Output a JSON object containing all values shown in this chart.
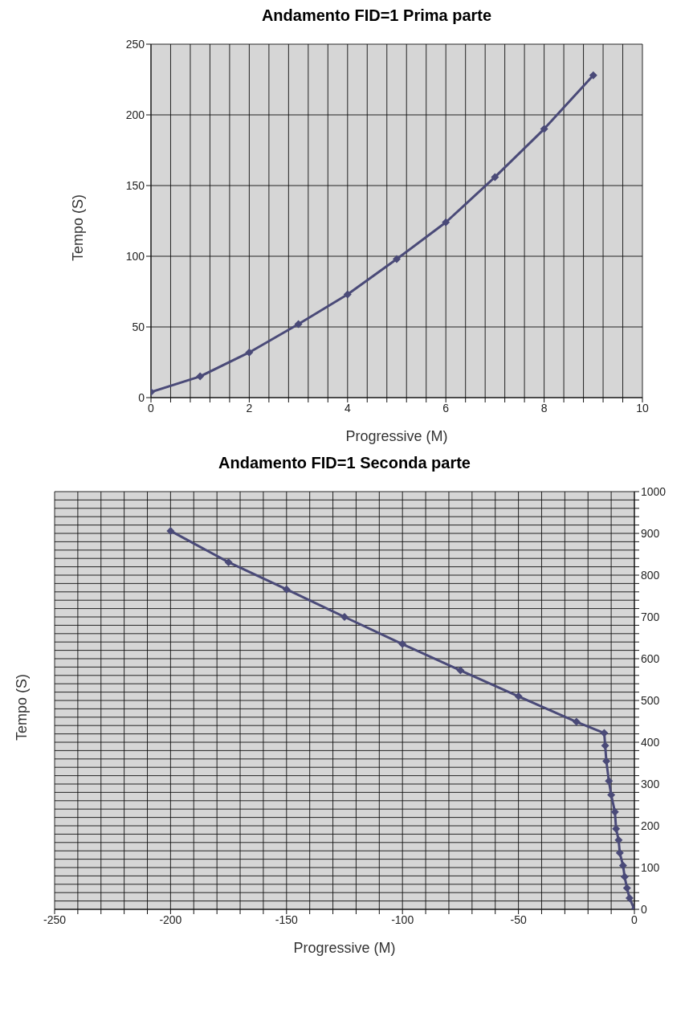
{
  "chart_data": [
    {
      "type": "line",
      "title": "Andamento FID=1 Prima parte",
      "xlabel": "Progressive (M)",
      "ylabel": "Tempo (S)",
      "marker": "diamond",
      "grid": true,
      "legend": false,
      "x": [
        0,
        1,
        2,
        3,
        4,
        5,
        6,
        7,
        8,
        9
      ],
      "series": [
        {
          "color": "#4a4a78",
          "values": [
            4,
            15,
            32,
            52,
            73,
            98,
            124,
            156,
            190,
            228
          ]
        }
      ],
      "xlim": [
        0,
        10
      ],
      "ylim": [
        0,
        250
      ],
      "yticks": [
        0,
        50,
        100,
        150,
        200,
        250
      ],
      "xticks": [
        0,
        {
          "value": 0.4,
          "label": null
        },
        {
          "value": 0.8,
          "label": null
        },
        {
          "value": 1.2,
          "label": null
        },
        {
          "value": 1.6,
          "label": null
        },
        2,
        {
          "value": 2.4,
          "label": null
        },
        {
          "value": 2.8,
          "label": null
        },
        {
          "value": 3.2,
          "label": null
        },
        {
          "value": 3.6,
          "label": null
        },
        4,
        {
          "value": 4.4,
          "label": null
        },
        {
          "value": 4.8,
          "label": null
        },
        {
          "value": 5.2,
          "label": null
        },
        {
          "value": 5.6,
          "label": null
        },
        6,
        {
          "value": 6.4,
          "label": null
        },
        {
          "value": 6.8,
          "label": null
        },
        {
          "value": 7.2,
          "label": null
        },
        {
          "value": 7.6,
          "label": null
        },
        8,
        {
          "value": 8.4,
          "label": null
        },
        {
          "value": 8.8,
          "label": null
        },
        {
          "value": 9.2,
          "label": null
        },
        {
          "value": 9.6,
          "label": null
        },
        10
      ]
    },
    {
      "type": "line",
      "title": "Andamento FID=1 Seconda parte",
      "xlabel": "Progressive (M)",
      "ylabel": "Tempo (S)",
      "marker": "diamond",
      "grid": true,
      "legend": false,
      "x": [
        -200,
        -175,
        -150,
        -125,
        -100,
        -75,
        -50,
        -25,
        -13,
        -12.6,
        -12.1,
        -11,
        -10,
        -8.4,
        -7.9,
        -6.8,
        -6.3,
        -4.9,
        -4.2,
        -3.2,
        -2.1,
        0
      ],
      "series": [
        {
          "color": "#4a4a78",
          "values": [
            906,
            831,
            766,
            700,
            635,
            572,
            510,
            449,
            422,
            392,
            355,
            307,
            274,
            233,
            193,
            166,
            135,
            105,
            78,
            51,
            27,
            0
          ]
        }
      ],
      "xlim": [
        -250,
        0
      ],
      "ylim": [
        0,
        1000
      ],
      "xticks": [
        -250,
        {
          "value": -240,
          "label": null
        },
        {
          "value": -230,
          "label": null
        },
        {
          "value": -220,
          "label": null
        },
        {
          "value": -210,
          "label": null
        },
        -200,
        {
          "value": -190,
          "label": null
        },
        {
          "value": -180,
          "label": null
        },
        {
          "value": -170,
          "label": null
        },
        {
          "value": -160,
          "label": null
        },
        -150,
        {
          "value": -140,
          "label": null
        },
        {
          "value": -130,
          "label": null
        },
        {
          "value": -120,
          "label": null
        },
        {
          "value": -110,
          "label": null
        },
        -100,
        {
          "value": -90,
          "label": null
        },
        {
          "value": -80,
          "label": null
        },
        {
          "value": -70,
          "label": null
        },
        {
          "value": -60,
          "label": null
        },
        -50,
        {
          "value": -40,
          "label": null
        },
        {
          "value": -30,
          "label": null
        },
        {
          "value": -20,
          "label": null
        },
        {
          "value": -10,
          "label": null
        },
        0
      ],
      "yticks": [
        0,
        {
          "value": 20,
          "label": null
        },
        {
          "value": 40,
          "label": null
        },
        {
          "value": 60,
          "label": null
        },
        {
          "value": 80,
          "label": null
        },
        100,
        {
          "value": 120,
          "label": null
        },
        {
          "value": 140,
          "label": null
        },
        {
          "value": 160,
          "label": null
        },
        {
          "value": 180,
          "label": null
        },
        200,
        {
          "value": 220,
          "label": null
        },
        {
          "value": 240,
          "label": null
        },
        {
          "value": 260,
          "label": null
        },
        {
          "value": 280,
          "label": null
        },
        300,
        {
          "value": 320,
          "label": null
        },
        {
          "value": 340,
          "label": null
        },
        {
          "value": 360,
          "label": null
        },
        {
          "value": 380,
          "label": null
        },
        400,
        {
          "value": 420,
          "label": null
        },
        {
          "value": 440,
          "label": null
        },
        {
          "value": 460,
          "label": null
        },
        {
          "value": 480,
          "label": null
        },
        500,
        {
          "value": 520,
          "label": null
        },
        {
          "value": 540,
          "label": null
        },
        {
          "value": 560,
          "label": null
        },
        {
          "value": 580,
          "label": null
        },
        600,
        {
          "value": 620,
          "label": null
        },
        {
          "value": 640,
          "label": null
        },
        {
          "value": 660,
          "label": null
        },
        {
          "value": 680,
          "label": null
        },
        700,
        {
          "value": 720,
          "label": null
        },
        {
          "value": 740,
          "label": null
        },
        {
          "value": 760,
          "label": null
        },
        {
          "value": 780,
          "label": null
        },
        800,
        {
          "value": 820,
          "label": null
        },
        {
          "value": 840,
          "label": null
        },
        {
          "value": 860,
          "label": null
        },
        {
          "value": 880,
          "label": null
        },
        900,
        {
          "value": 920,
          "label": null
        },
        {
          "value": 940,
          "label": null
        },
        {
          "value": 960,
          "label": null
        },
        {
          "value": 980,
          "label": null
        },
        1000
      ],
      "tick_labels": true
    }
  ]
}
